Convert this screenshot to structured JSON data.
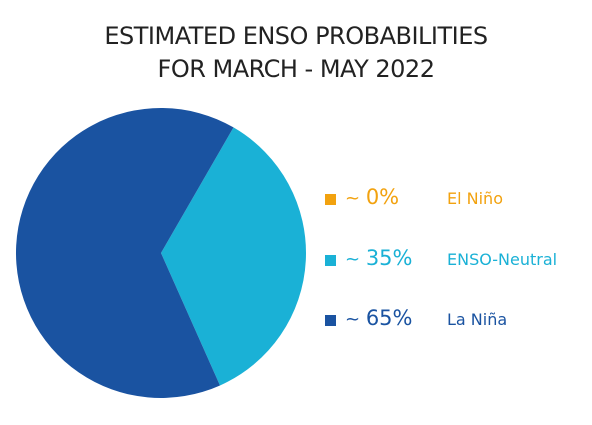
{
  "chart_data": {
    "type": "pie",
    "title": "ESTIMATED ENSO PROBABILITIES",
    "subtitle": "FOR MARCH - MAY 2022",
    "start_angle_deg": 30,
    "slices": [
      {
        "name": "El Niño",
        "value": 0,
        "label": "~ 0%",
        "color": "#f2a20f"
      },
      {
        "name": "ENSO-Neutral",
        "value": 35,
        "label": "~ 35%",
        "color": "#1ab1d6"
      },
      {
        "name": "La Niña",
        "value": 65,
        "label": "~ 65%",
        "color": "#1a53a1"
      }
    ],
    "legend_position": "right"
  }
}
